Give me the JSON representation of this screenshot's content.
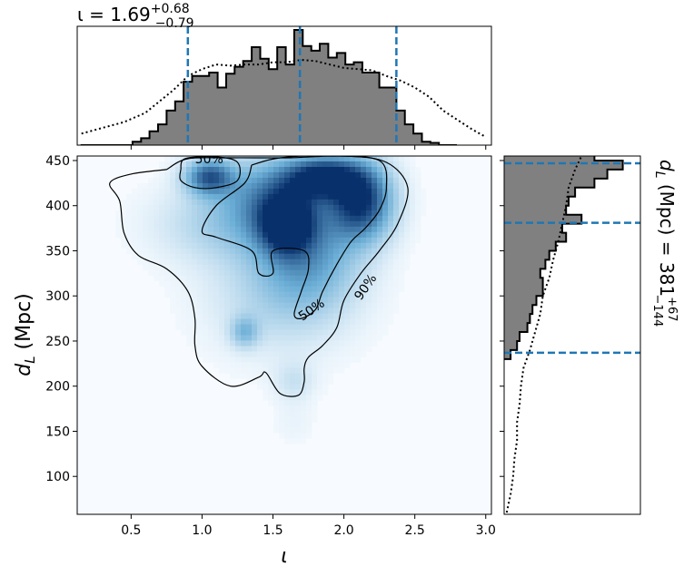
{
  "chart_data": {
    "type": "corner",
    "colors": {
      "hist_fill": "#808080",
      "median_line": "#1f77b4",
      "density_cmap_low": "#f7fbff",
      "density_cmap_high": "#08306b",
      "contour": "#000000"
    },
    "top_panel": {
      "type": "histogram",
      "title_prefix": "ι = 1.69",
      "title_sup": "+0.68",
      "title_sub": "−0.79",
      "xlim": [
        0.12,
        3.04
      ],
      "bins": [
        0.15,
        0.21,
        0.27,
        0.33,
        0.39,
        0.45,
        0.51,
        0.57,
        0.63,
        0.69,
        0.75,
        0.81,
        0.87,
        0.93,
        0.99,
        1.05,
        1.11,
        1.17,
        1.23,
        1.29,
        1.35,
        1.41,
        1.47,
        1.53,
        1.59,
        1.65,
        1.71,
        1.77,
        1.83,
        1.89,
        1.95,
        2.01,
        2.07,
        2.13,
        2.19,
        2.25,
        2.31,
        2.37,
        2.43,
        2.49,
        2.55,
        2.61,
        2.67,
        2.73
      ],
      "counts": [
        0,
        0,
        0,
        0,
        0,
        0,
        0.03,
        0.06,
        0.12,
        0.18,
        0.3,
        0.38,
        0.55,
        0.6,
        0.6,
        0.63,
        0.5,
        0.62,
        0.68,
        0.73,
        0.85,
        0.75,
        0.66,
        0.85,
        0.7,
        1,
        0.86,
        0.82,
        0.88,
        0.76,
        0.8,
        0.7,
        0.72,
        0.63,
        0.63,
        0.5,
        0.5,
        0.3,
        0.18,
        0.1,
        0.03,
        0.02,
        0,
        0
      ],
      "prior_x": [
        0.15,
        0.3,
        0.45,
        0.6,
        0.72,
        0.8,
        0.9,
        1.0,
        1.1,
        1.2,
        1.3,
        1.4,
        1.5,
        1.6,
        1.7,
        1.8,
        1.9,
        2.0,
        2.1,
        2.2,
        2.3,
        2.4,
        2.5,
        2.6,
        2.7,
        2.8,
        2.9,
        3.0
      ],
      "prior_y": [
        0.1,
        0.15,
        0.2,
        0.28,
        0.4,
        0.48,
        0.6,
        0.66,
        0.7,
        0.69,
        0.7,
        0.7,
        0.72,
        0.72,
        0.74,
        0.73,
        0.7,
        0.67,
        0.66,
        0.65,
        0.6,
        0.56,
        0.5,
        0.42,
        0.3,
        0.22,
        0.14,
        0.07
      ],
      "quantile_lines": [
        0.9,
        1.69,
        2.37
      ]
    },
    "right_panel": {
      "type": "histogram",
      "label_prefix": "d",
      "label_sub": "L",
      "label_unit": " (Mpc) = 381",
      "label_sup": "+67",
      "label_sub2": "−144",
      "ylim": [
        58,
        455
      ],
      "bins": [
        230,
        240,
        250,
        260,
        270,
        280,
        290,
        300,
        310,
        320,
        330,
        340,
        350,
        360,
        370,
        380,
        390,
        400,
        410,
        420,
        430,
        440,
        450
      ],
      "counts": [
        0.05,
        0.1,
        0.12,
        0.18,
        0.2,
        0.22,
        0.25,
        0.3,
        0.3,
        0.28,
        0.32,
        0.35,
        0.4,
        0.48,
        0.45,
        0.6,
        0.48,
        0.5,
        0.55,
        0.7,
        0.8,
        0.92,
        0.7
      ],
      "prior_y": [
        60,
        80,
        100,
        120,
        140,
        160,
        180,
        200,
        220,
        240,
        260,
        280,
        300,
        320,
        340,
        360,
        380,
        400,
        420,
        440,
        455
      ],
      "prior_x": [
        0.02,
        0.05,
        0.07,
        0.08,
        0.1,
        0.1,
        0.12,
        0.13,
        0.15,
        0.2,
        0.24,
        0.28,
        0.3,
        0.35,
        0.38,
        0.42,
        0.45,
        0.48,
        0.5,
        0.55,
        0.6
      ],
      "quantile_lines": [
        237,
        381,
        447
      ]
    },
    "main_panel": {
      "type": "heatmap",
      "xlabel": "ι",
      "ylabel_prefix": "d",
      "ylabel_sub": "L",
      "ylabel_unit": " (Mpc)",
      "xlim": [
        0.12,
        3.04
      ],
      "ylim": [
        58,
        455
      ],
      "xticks": [
        0.5,
        1.0,
        1.5,
        2.0,
        2.5,
        3.0
      ],
      "xtick_labels": [
        "0.5",
        "1.0",
        "1.5",
        "2.0",
        "2.5",
        "3.0"
      ],
      "yticks": [
        100,
        150,
        200,
        250,
        300,
        350,
        400,
        450
      ],
      "ytick_labels": [
        "100",
        "150",
        "200",
        "250",
        "300",
        "350",
        "400",
        "450"
      ],
      "density_blobs": [
        {
          "x": 1.05,
          "y": 432,
          "sx": 0.12,
          "sy": 14,
          "w": 0.75
        },
        {
          "x": 1.6,
          "y": 380,
          "sx": 0.13,
          "sy": 22,
          "w": 0.85
        },
        {
          "x": 1.85,
          "y": 432,
          "sx": 0.18,
          "sy": 16,
          "w": 0.9
        },
        {
          "x": 2.12,
          "y": 405,
          "sx": 0.16,
          "sy": 30,
          "w": 0.95
        },
        {
          "x": 1.5,
          "y": 415,
          "sx": 0.25,
          "sy": 30,
          "w": 0.5
        },
        {
          "x": 1.75,
          "y": 345,
          "sx": 0.25,
          "sy": 40,
          "w": 0.45
        },
        {
          "x": 1.3,
          "y": 260,
          "sx": 0.07,
          "sy": 12,
          "w": 0.35
        },
        {
          "x": 1.55,
          "y": 300,
          "sx": 0.35,
          "sy": 45,
          "w": 0.22
        },
        {
          "x": 1.65,
          "y": 205,
          "sx": 0.1,
          "sy": 15,
          "w": 0.15
        },
        {
          "x": 1.2,
          "y": 380,
          "sx": 0.35,
          "sy": 30,
          "w": 0.28
        },
        {
          "x": 1.65,
          "y": 160,
          "sx": 0.1,
          "sy": 18,
          "w": 0.05
        }
      ],
      "contour_90": [
        [
          0.75,
          440
        ],
        [
          0.9,
          452
        ],
        [
          1.2,
          453
        ],
        [
          1.6,
          453
        ],
        [
          2.0,
          455
        ],
        [
          2.3,
          448
        ],
        [
          2.45,
          420
        ],
        [
          2.38,
          380
        ],
        [
          2.25,
          350
        ],
        [
          2.12,
          325
        ],
        [
          2.0,
          295
        ],
        [
          1.95,
          265
        ],
        [
          1.85,
          245
        ],
        [
          1.75,
          232
        ],
        [
          1.72,
          220
        ],
        [
          1.72,
          205
        ],
        [
          1.68,
          190
        ],
        [
          1.55,
          192
        ],
        [
          1.45,
          215
        ],
        [
          1.4,
          210
        ],
        [
          1.2,
          200
        ],
        [
          1.0,
          222
        ],
        [
          0.95,
          245
        ],
        [
          0.95,
          275
        ],
        [
          0.9,
          305
        ],
        [
          0.75,
          330
        ],
        [
          0.55,
          345
        ],
        [
          0.45,
          370
        ],
        [
          0.42,
          405
        ],
        [
          0.35,
          425
        ],
        [
          0.5,
          435
        ],
        [
          0.75,
          440
        ]
      ],
      "contour_50a": [
        [
          0.85,
          440
        ],
        [
          0.88,
          452
        ],
        [
          1.1,
          454
        ],
        [
          1.25,
          448
        ],
        [
          1.25,
          428
        ],
        [
          1.1,
          420
        ],
        [
          0.95,
          420
        ],
        [
          0.85,
          428
        ],
        [
          0.85,
          440
        ]
      ],
      "contour_50b": [
        [
          1.35,
          445
        ],
        [
          1.55,
          453
        ],
        [
          1.9,
          455
        ],
        [
          2.25,
          450
        ],
        [
          2.3,
          420
        ],
        [
          2.25,
          395
        ],
        [
          2.15,
          375
        ],
        [
          2.05,
          360
        ],
        [
          1.95,
          335
        ],
        [
          1.85,
          305
        ],
        [
          1.8,
          285
        ],
        [
          1.7,
          275
        ],
        [
          1.65,
          280
        ],
        [
          1.7,
          305
        ],
        [
          1.75,
          330
        ],
        [
          1.72,
          350
        ],
        [
          1.5,
          350
        ],
        [
          1.5,
          325
        ],
        [
          1.4,
          325
        ],
        [
          1.35,
          350
        ],
        [
          1.1,
          365
        ],
        [
          1.0,
          372
        ],
        [
          1.1,
          400
        ],
        [
          1.3,
          425
        ],
        [
          1.35,
          445
        ]
      ],
      "contour_labels": [
        {
          "text": "50%",
          "x": 1.05,
          "y": 452,
          "rot": 0
        },
        {
          "text": "50%",
          "x": 1.77,
          "y": 285,
          "rot": -35
        },
        {
          "text": "90%",
          "x": 2.15,
          "y": 310,
          "rot": -55
        }
      ]
    }
  }
}
